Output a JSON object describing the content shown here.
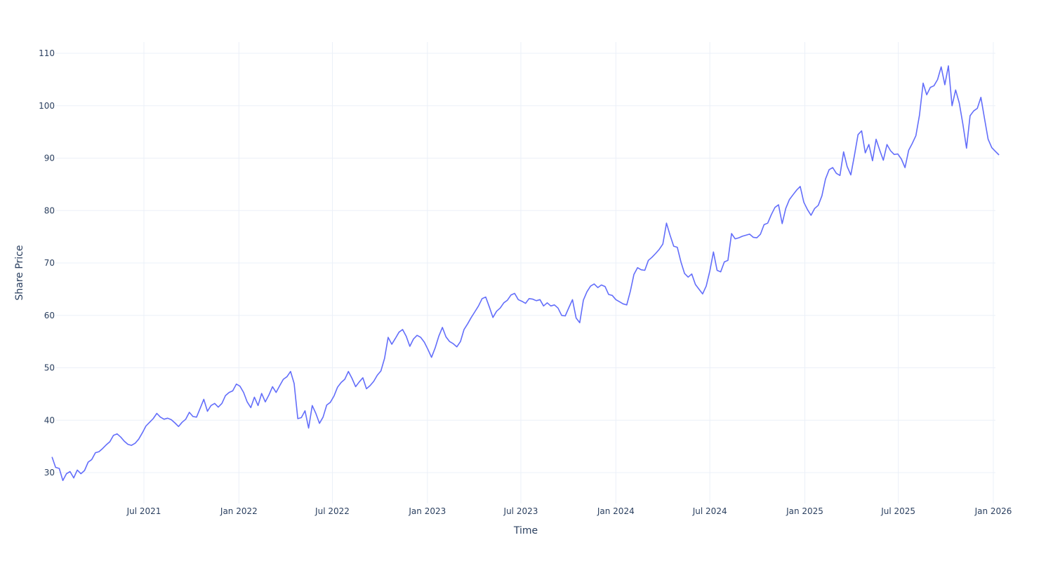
{
  "chart_data": {
    "type": "line",
    "title": "",
    "xlabel": "Time",
    "ylabel": "Share Price",
    "ylim": [
      25,
      112
    ],
    "xlim": [
      "2021-01-04",
      "2026-01-12"
    ],
    "grid": true,
    "legend": "none",
    "line_color": "#636efa",
    "y_ticks": [
      30,
      40,
      50,
      60,
      70,
      80,
      90,
      100,
      110
    ],
    "x_ticks": [
      {
        "date": "2021-07-01",
        "label": "Jul 2021"
      },
      {
        "date": "2022-01-01",
        "label": "Jan 2022"
      },
      {
        "date": "2022-07-01",
        "label": "Jul 2022"
      },
      {
        "date": "2023-01-01",
        "label": "Jan 2023"
      },
      {
        "date": "2023-07-01",
        "label": "Jul 2023"
      },
      {
        "date": "2024-01-01",
        "label": "Jan 2024"
      },
      {
        "date": "2024-07-01",
        "label": "Jul 2024"
      },
      {
        "date": "2025-01-01",
        "label": "Jan 2025"
      },
      {
        "date": "2025-07-01",
        "label": "Jul 2025"
      },
      {
        "date": "2026-01-01",
        "label": "Jan 2026"
      }
    ],
    "series": [
      {
        "name": "Share Price",
        "x": [
          "2021-01-04",
          "2021-01-11",
          "2021-01-18",
          "2021-01-25",
          "2021-02-01",
          "2021-02-08",
          "2021-02-15",
          "2021-02-22",
          "2021-03-01",
          "2021-03-08",
          "2021-03-15",
          "2021-03-22",
          "2021-03-29",
          "2021-04-05",
          "2021-04-12",
          "2021-04-19",
          "2021-04-26",
          "2021-05-03",
          "2021-05-10",
          "2021-05-17",
          "2021-05-24",
          "2021-05-31",
          "2021-06-07",
          "2021-06-14",
          "2021-06-21",
          "2021-06-28",
          "2021-07-05",
          "2021-07-12",
          "2021-07-19",
          "2021-07-26",
          "2021-08-02",
          "2021-08-09",
          "2021-08-16",
          "2021-08-23",
          "2021-08-30",
          "2021-09-06",
          "2021-09-13",
          "2021-09-20",
          "2021-09-27",
          "2021-10-04",
          "2021-10-11",
          "2021-10-18",
          "2021-10-25",
          "2021-11-01",
          "2021-11-08",
          "2021-11-15",
          "2021-11-22",
          "2021-11-29",
          "2021-12-06",
          "2021-12-13",
          "2021-12-20",
          "2021-12-27",
          "2022-01-03",
          "2022-01-10",
          "2022-01-17",
          "2022-01-24",
          "2022-01-31",
          "2022-02-07",
          "2022-02-14",
          "2022-02-21",
          "2022-02-28",
          "2022-03-07",
          "2022-03-14",
          "2022-03-21",
          "2022-03-28",
          "2022-04-04",
          "2022-04-11",
          "2022-04-18",
          "2022-04-25",
          "2022-05-02",
          "2022-05-09",
          "2022-05-16",
          "2022-05-23",
          "2022-05-30",
          "2022-06-06",
          "2022-06-13",
          "2022-06-20",
          "2022-06-27",
          "2022-07-04",
          "2022-07-11",
          "2022-07-18",
          "2022-07-25",
          "2022-08-01",
          "2022-08-08",
          "2022-08-15",
          "2022-08-22",
          "2022-08-29",
          "2022-09-05",
          "2022-09-12",
          "2022-09-19",
          "2022-09-26",
          "2022-10-03",
          "2022-10-10",
          "2022-10-17",
          "2022-10-24",
          "2022-10-31",
          "2022-11-07",
          "2022-11-14",
          "2022-11-21",
          "2022-11-28",
          "2022-12-05",
          "2022-12-12",
          "2022-12-19",
          "2022-12-26",
          "2023-01-02",
          "2023-01-09",
          "2023-01-16",
          "2023-01-23",
          "2023-01-30",
          "2023-02-06",
          "2023-02-13",
          "2023-02-20",
          "2023-02-27",
          "2023-03-06",
          "2023-03-13",
          "2023-03-20",
          "2023-03-27",
          "2023-04-03",
          "2023-04-10",
          "2023-04-17",
          "2023-04-24",
          "2023-05-01",
          "2023-05-08",
          "2023-05-15",
          "2023-05-22",
          "2023-05-29",
          "2023-06-05",
          "2023-06-12",
          "2023-06-19",
          "2023-06-26",
          "2023-07-03",
          "2023-07-10",
          "2023-07-17",
          "2023-07-24",
          "2023-07-31",
          "2023-08-07",
          "2023-08-14",
          "2023-08-21",
          "2023-08-28",
          "2023-09-04",
          "2023-09-11",
          "2023-09-18",
          "2023-09-25",
          "2023-10-02",
          "2023-10-09",
          "2023-10-16",
          "2023-10-23",
          "2023-10-30",
          "2023-11-06",
          "2023-11-13",
          "2023-11-20",
          "2023-11-27",
          "2023-12-04",
          "2023-12-11",
          "2023-12-18",
          "2023-12-25",
          "2024-01-01",
          "2024-01-08",
          "2024-01-15",
          "2024-01-22",
          "2024-01-29",
          "2024-02-05",
          "2024-02-12",
          "2024-02-19",
          "2024-02-26",
          "2024-03-04",
          "2024-03-11",
          "2024-03-18",
          "2024-03-25",
          "2024-04-01",
          "2024-04-08",
          "2024-04-15",
          "2024-04-22",
          "2024-04-29",
          "2024-05-06",
          "2024-05-13",
          "2024-05-20",
          "2024-05-27",
          "2024-06-03",
          "2024-06-10",
          "2024-06-17",
          "2024-06-24",
          "2024-07-01",
          "2024-07-08",
          "2024-07-15",
          "2024-07-22",
          "2024-07-29",
          "2024-08-05",
          "2024-08-12",
          "2024-08-19",
          "2024-08-26",
          "2024-09-02",
          "2024-09-09",
          "2024-09-16",
          "2024-09-23",
          "2024-09-30",
          "2024-10-07",
          "2024-10-14",
          "2024-10-21",
          "2024-10-28",
          "2024-11-04",
          "2024-11-11",
          "2024-11-18",
          "2024-11-25",
          "2024-12-02",
          "2024-12-09",
          "2024-12-16",
          "2024-12-23",
          "2024-12-30",
          "2025-01-06",
          "2025-01-13",
          "2025-01-20",
          "2025-01-27",
          "2025-02-03",
          "2025-02-10",
          "2025-02-17",
          "2025-02-24",
          "2025-03-03",
          "2025-03-10",
          "2025-03-17",
          "2025-03-24",
          "2025-03-31",
          "2025-04-07",
          "2025-04-14",
          "2025-04-21",
          "2025-04-28",
          "2025-05-05",
          "2025-05-12",
          "2025-05-19",
          "2025-05-26",
          "2025-06-02",
          "2025-06-09",
          "2025-06-16",
          "2025-06-23",
          "2025-06-30",
          "2025-07-07",
          "2025-07-14",
          "2025-07-21",
          "2025-07-28",
          "2025-08-04",
          "2025-08-11",
          "2025-08-18",
          "2025-08-25",
          "2025-09-01",
          "2025-09-08",
          "2025-09-15",
          "2025-09-22",
          "2025-09-29",
          "2025-10-06",
          "2025-10-13",
          "2025-10-20",
          "2025-10-27",
          "2025-11-03",
          "2025-11-10",
          "2025-11-17",
          "2025-11-24",
          "2025-12-01",
          "2025-12-08",
          "2025-12-15",
          "2025-12-22",
          "2025-12-29",
          "2026-01-05",
          "2026-01-12"
        ],
        "values": [
          33.0,
          31.0,
          30.8,
          28.5,
          29.8,
          30.2,
          29.0,
          30.5,
          29.8,
          30.4,
          32.0,
          32.5,
          33.8,
          34.0,
          34.6,
          35.3,
          35.9,
          37.1,
          37.4,
          36.8,
          36.0,
          35.4,
          35.2,
          35.6,
          36.4,
          37.6,
          38.9,
          39.6,
          40.3,
          41.3,
          40.6,
          40.2,
          40.4,
          40.1,
          39.5,
          38.8,
          39.6,
          40.2,
          41.5,
          40.7,
          40.6,
          42.3,
          44.0,
          41.7,
          42.8,
          43.2,
          42.5,
          43.2,
          44.7,
          45.3,
          45.6,
          46.9,
          46.5,
          45.3,
          43.5,
          42.4,
          44.4,
          42.8,
          45.1,
          43.5,
          44.8,
          46.4,
          45.3,
          46.6,
          47.8,
          48.3,
          49.3,
          47.0,
          40.3,
          40.5,
          41.8,
          38.5,
          42.8,
          41.3,
          39.4,
          40.6,
          42.9,
          43.4,
          44.6,
          46.3,
          47.2,
          47.8,
          49.3,
          48.0,
          46.4,
          47.3,
          48.1,
          46.0,
          46.6,
          47.4,
          48.6,
          49.4,
          51.8,
          55.8,
          54.5,
          55.6,
          56.8,
          57.3,
          56.0,
          54.1,
          55.5,
          56.2,
          55.8,
          54.9,
          53.5,
          52.0,
          53.8,
          56.0,
          57.7,
          55.9,
          55.0,
          54.6,
          54.0,
          55.0,
          57.3,
          58.4,
          59.6,
          60.7,
          61.8,
          63.2,
          63.5,
          61.6,
          59.6,
          60.8,
          61.4,
          62.4,
          62.9,
          63.9,
          64.2,
          63.0,
          62.7,
          62.3,
          63.2,
          63.1,
          62.8,
          63.0,
          61.8,
          62.4,
          61.8,
          62.0,
          61.4,
          60.0,
          59.9,
          61.5,
          63.0,
          59.5,
          58.6,
          62.9,
          64.5,
          65.6,
          66.0,
          65.3,
          65.8,
          65.5,
          64.0,
          63.8,
          63.0,
          62.6,
          62.2,
          62.0,
          64.6,
          67.8,
          69.1,
          68.7,
          68.6,
          70.5,
          71.1,
          71.8,
          72.6,
          73.6,
          77.6,
          75.3,
          73.2,
          73.0,
          70.2,
          68.0,
          67.3,
          67.9,
          65.9,
          65.0,
          64.1,
          65.6,
          68.5,
          72.1,
          68.6,
          68.3,
          70.2,
          70.5,
          75.6,
          74.6,
          74.8,
          75.1,
          75.3,
          75.5,
          74.9,
          74.8,
          75.5,
          77.3,
          77.6,
          79.2,
          80.6,
          81.1,
          77.5,
          80.4,
          82.1,
          83.0,
          83.9,
          84.6,
          81.6,
          80.2,
          79.1,
          80.4,
          81.0,
          82.8,
          86.0,
          87.8,
          88.2,
          87.1,
          86.7,
          91.2,
          88.4,
          86.8,
          90.5,
          94.5,
          95.2,
          91.0,
          92.6,
          89.5,
          93.6,
          91.5,
          89.6,
          92.6,
          91.4,
          90.7,
          90.8,
          89.8,
          88.2,
          91.5,
          92.8,
          94.3,
          98.2,
          104.3,
          102.1,
          103.5,
          103.8,
          105.0,
          107.4,
          104.0,
          107.6,
          100.0,
          103.0,
          100.5,
          96.5,
          91.9,
          98.1,
          99.0,
          99.5,
          101.6,
          97.5,
          93.6,
          92.0,
          91.3,
          90.6
        ]
      }
    ]
  }
}
